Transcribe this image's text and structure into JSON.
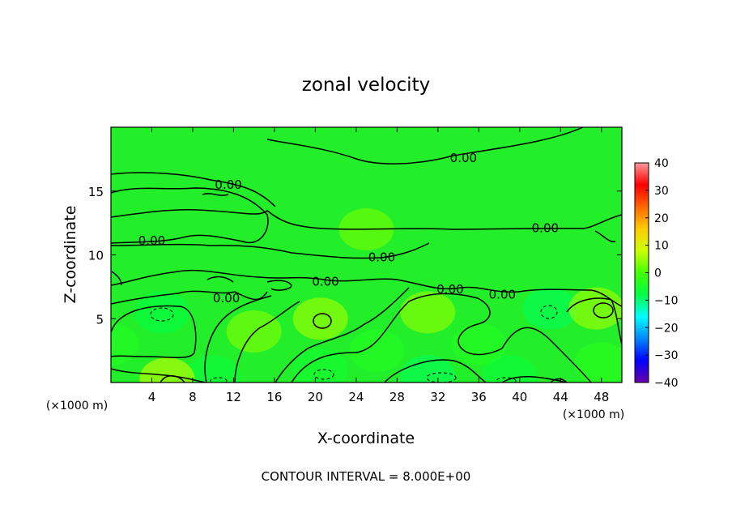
{
  "chart_data": {
    "type": "heatmap",
    "title": "zonal velocity",
    "xlabel": "X-coordinate",
    "ylabel": "Z-coordinate",
    "x_unit_left": "(×1000 m)",
    "x_unit_right": "(×1000 m)",
    "footer": "CONTOUR INTERVAL = 8.000E+00",
    "x_ticks": [
      "4",
      "8",
      "12",
      "16",
      "20",
      "24",
      "28",
      "32",
      "36",
      "40",
      "44",
      "48"
    ],
    "y_ticks": [
      "5",
      "10",
      "15"
    ],
    "xlim": [
      0,
      50
    ],
    "ylim": [
      0,
      20
    ],
    "colorbar": {
      "min": -40,
      "max": 40,
      "ticks": [
        "40",
        "30",
        "20",
        "10",
        "0",
        "−10",
        "−20",
        "−30",
        "−40"
      ],
      "colors": [
        "#6a00a8",
        "#0000ff",
        "#0088ff",
        "#00ffff",
        "#00ff44",
        "#44ff00",
        "#ccff00",
        "#ffcc00",
        "#ff6600",
        "#ff0000",
        "#ff9999"
      ]
    },
    "contour_labels": [
      {
        "text": "0.00",
        "x": 34.5,
        "y": 17.6
      },
      {
        "text": "0.00",
        "x": 11.5,
        "y": 15.5
      },
      {
        "text": "0.00",
        "x": 4.0,
        "y": 11.1
      },
      {
        "text": "0.00",
        "x": 42.5,
        "y": 12.1
      },
      {
        "text": "0.00",
        "x": 26.5,
        "y": 9.8
      },
      {
        "text": "0.00",
        "x": 21.0,
        "y": 7.9
      },
      {
        "text": "0.00",
        "x": 11.3,
        "y": 6.6
      },
      {
        "text": "0.00",
        "x": 33.2,
        "y": 7.3
      },
      {
        "text": "0.00",
        "x": 38.3,
        "y": 6.9
      }
    ],
    "cells": [
      {
        "x": 5,
        "z": 5.5,
        "u": -8
      },
      {
        "x": 10,
        "z": 0.5,
        "u": -7
      },
      {
        "x": 20.5,
        "z": 1,
        "u": -6
      },
      {
        "x": 31,
        "z": 0.5,
        "u": -9
      },
      {
        "x": 39,
        "z": 0.5,
        "u": -7
      },
      {
        "x": 43,
        "z": 5.8,
        "u": -9
      },
      {
        "x": 20.5,
        "z": 5,
        "u": 6
      },
      {
        "x": 47.5,
        "z": 5.8,
        "u": 6
      },
      {
        "x": 5.5,
        "z": 0.3,
        "u": 8
      },
      {
        "x": 31,
        "z": 5.5,
        "u": 5
      },
      {
        "x": 14,
        "z": 4,
        "u": 4
      },
      {
        "x": 26,
        "z": 2.5,
        "u": -4
      },
      {
        "x": 36,
        "z": 3,
        "u": -4
      },
      {
        "x": 0,
        "z": 3,
        "u": -4
      },
      {
        "x": 48,
        "z": 1.5,
        "u": -3
      },
      {
        "x": 25,
        "z": 12,
        "u": 3
      }
    ]
  }
}
